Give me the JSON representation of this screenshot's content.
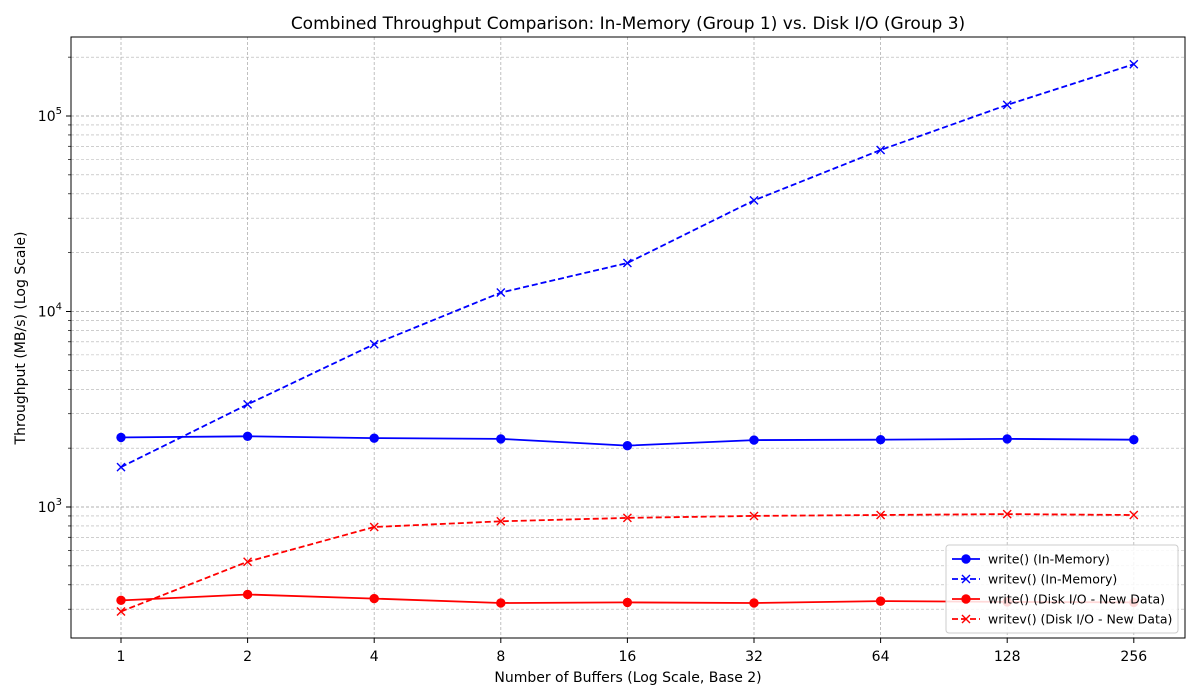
{
  "chart_data": {
    "type": "line",
    "title": "Combined Throughput Comparison: In-Memory (Group 1) vs. Disk I/O (Group 3)",
    "xlabel": "Number of Buffers (Log Scale, Base 2)",
    "ylabel": "Throughput (MB/s) (Log Scale)",
    "x_scale": "log2",
    "y_scale": "log10",
    "x": [
      1,
      2,
      4,
      8,
      16,
      32,
      64,
      128,
      256
    ],
    "x_tick_labels": [
      "1",
      "2",
      "4",
      "8",
      "16",
      "32",
      "64",
      "128",
      "256"
    ],
    "y_ticks": [
      {
        "base": "10",
        "exp": "3",
        "value": 1000
      },
      {
        "base": "10",
        "exp": "4",
        "value": 10000
      },
      {
        "base": "10",
        "exp": "5",
        "value": 100000
      }
    ],
    "ylim": [
      220,
      250000
    ],
    "grid": "major and minor, dashed",
    "legend_position": "lower right",
    "series": [
      {
        "name": "write() (In-Memory)",
        "color": "#0000ff",
        "line": "solid",
        "marker": "circle",
        "values": [
          2270,
          2300,
          2250,
          2230,
          2060,
          2200,
          2210,
          2230,
          2210
        ]
      },
      {
        "name": "writev() (In-Memory)",
        "color": "#0000ff",
        "line": "dashed",
        "marker": "x",
        "values": [
          1600,
          3350,
          6800,
          12500,
          17700,
          37000,
          67000,
          114000,
          184000
        ]
      },
      {
        "name": "write() (Disk I/O - New Data)",
        "color": "#ff0000",
        "line": "solid",
        "marker": "circle",
        "values": [
          333,
          357,
          340,
          323,
          325,
          323,
          330,
          327,
          325
        ]
      },
      {
        "name": "writev() (Disk I/O - New Data)",
        "color": "#ff0000",
        "line": "dashed",
        "marker": "x",
        "values": [
          292,
          525,
          790,
          845,
          880,
          900,
          910,
          920,
          910
        ]
      }
    ]
  }
}
